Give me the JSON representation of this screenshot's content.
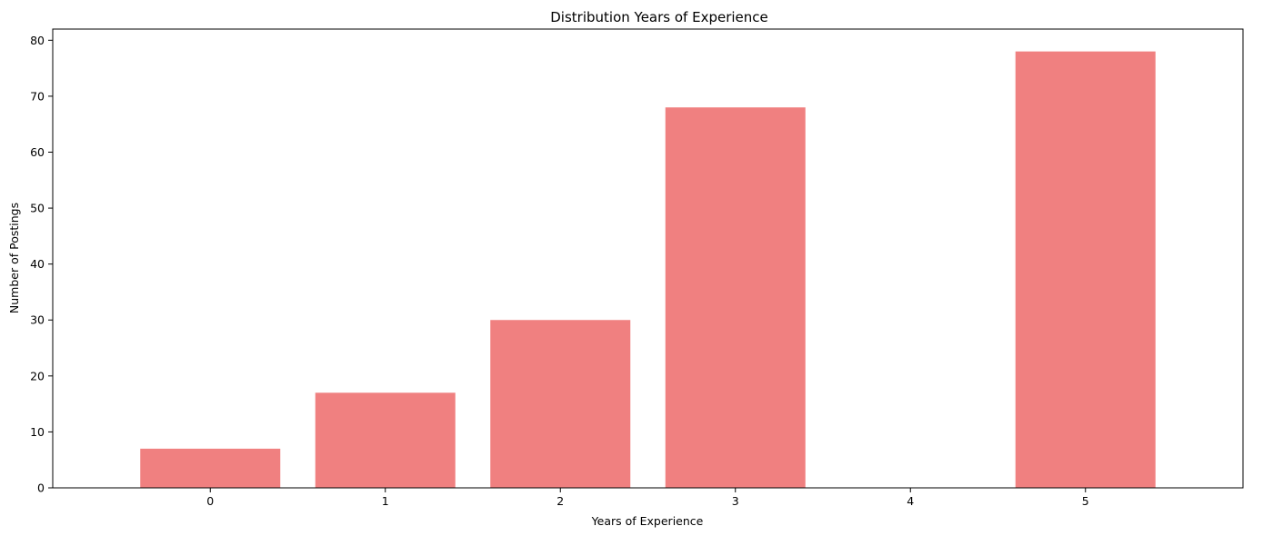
{
  "chart_data": {
    "type": "bar",
    "title": "Distribution Years of Experience",
    "xlabel": "Years of Experience",
    "ylabel": "Number of Postings",
    "categories": [
      "0",
      "1",
      "2",
      "3",
      "4",
      "5"
    ],
    "values": [
      7,
      17,
      30,
      68,
      0,
      78
    ],
    "ylim": [
      0,
      82
    ],
    "yticks": [
      0,
      10,
      20,
      30,
      40,
      50,
      60,
      70,
      80
    ],
    "grid": false,
    "legend": "none",
    "bar_color": "#F08080"
  }
}
